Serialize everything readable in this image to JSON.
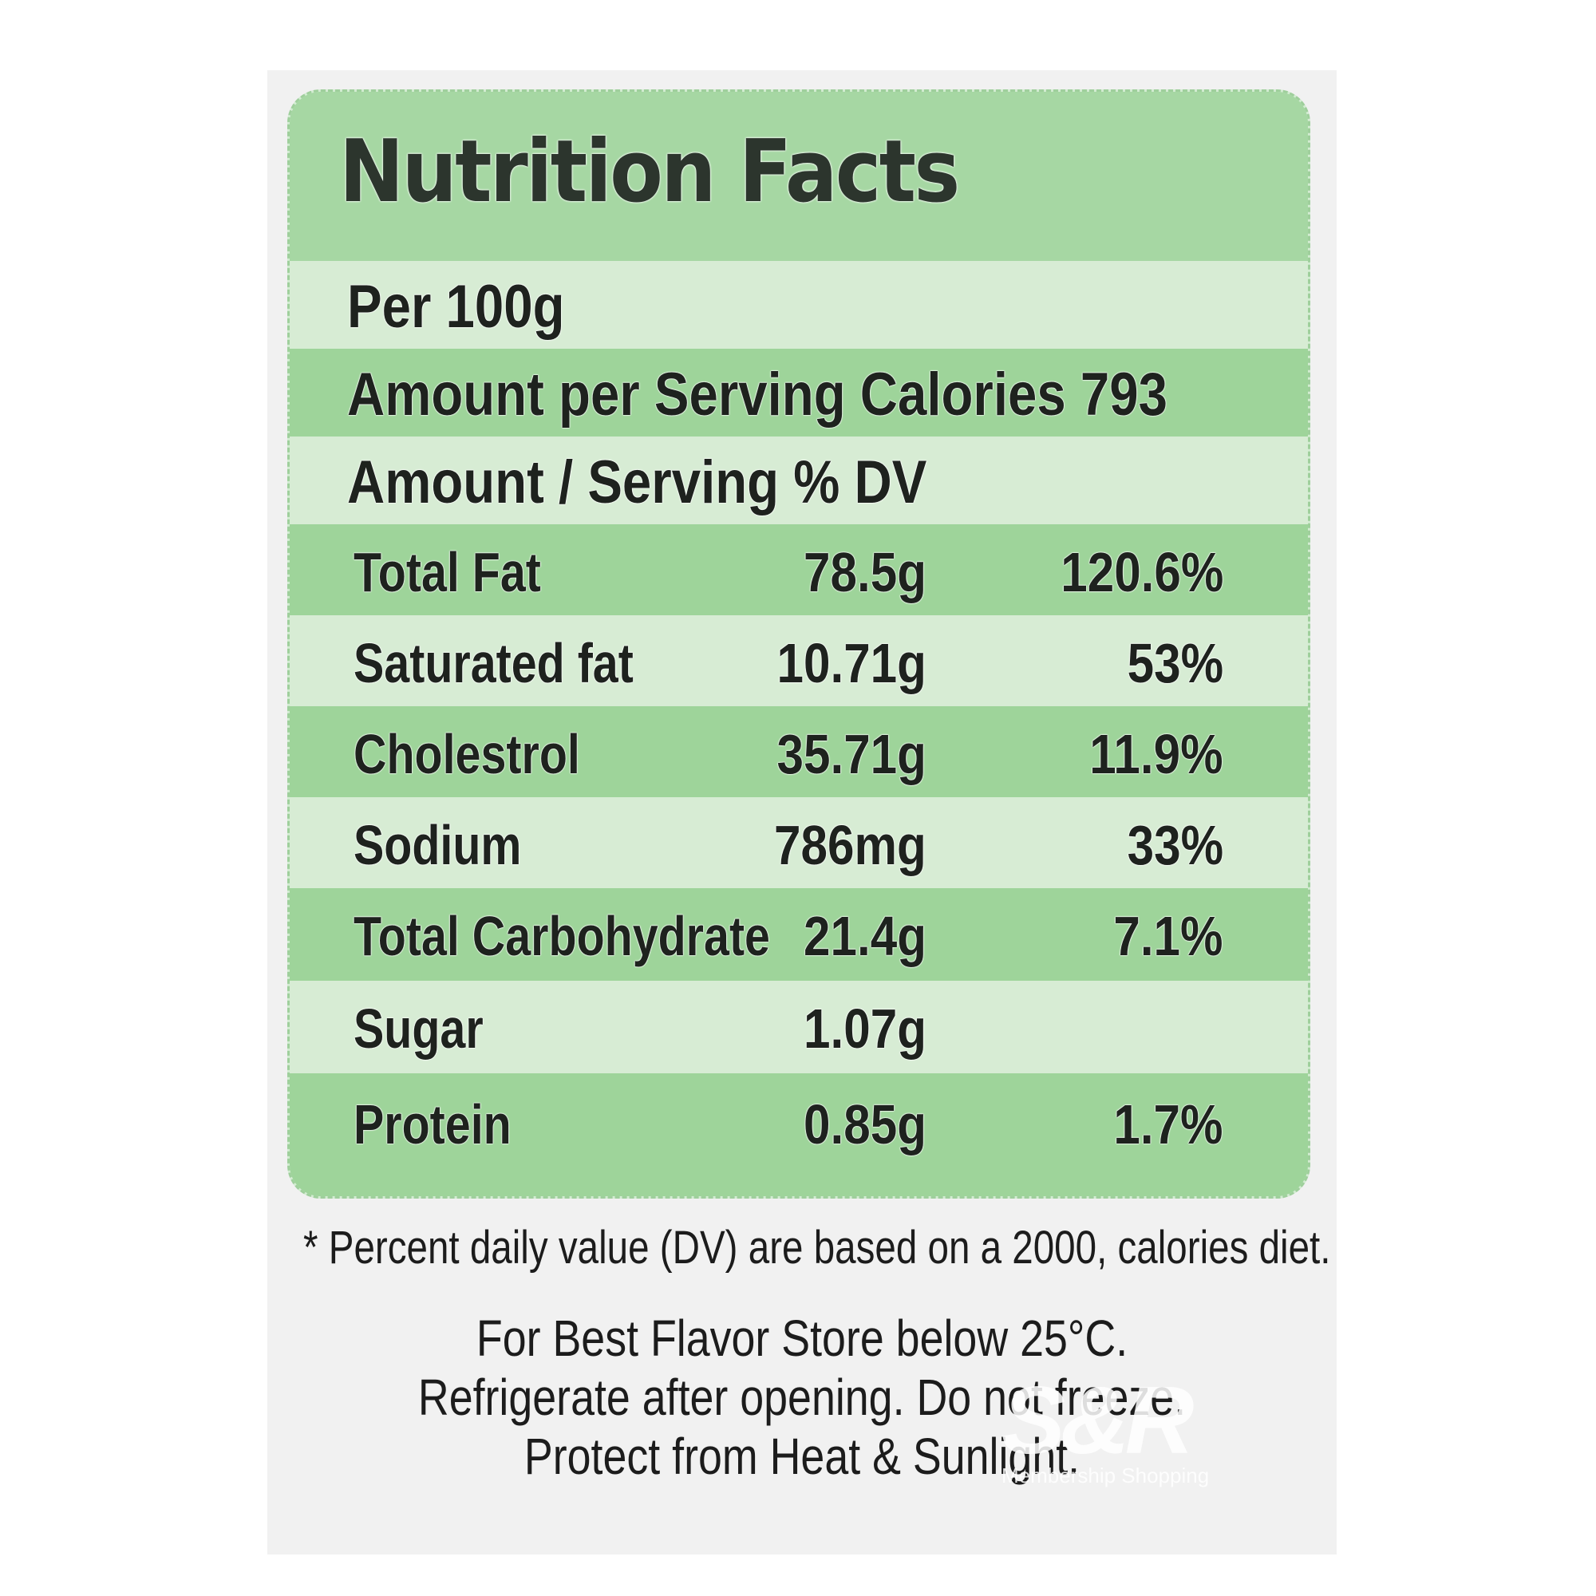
{
  "panel": {
    "title": "Nutrition Facts",
    "per": "Per 100g",
    "calories_line": "Amount per Serving Calories 793",
    "column_header": "Amount  / Serving % DV",
    "rows": [
      {
        "name": "Total Fat",
        "amount": "78.5g",
        "dv": "120.6%"
      },
      {
        "name": "Saturated fat",
        "amount": "10.71g",
        "dv": "53%"
      },
      {
        "name": "Cholestrol",
        "amount": "35.71g",
        "dv": "11.9%"
      },
      {
        "name": "Sodium",
        "amount": "786mg",
        "dv": "33%"
      },
      {
        "name": "Total Carbohydrate",
        "amount": "21.4g",
        "dv": "7.1%"
      },
      {
        "name": "Sugar",
        "amount": "1.07g",
        "dv": ""
      },
      {
        "name": "Protein",
        "amount": "0.85g",
        "dv": "1.7%"
      }
    ]
  },
  "footnote": "* Percent daily value (DV) are based on a 2000, calories diet.",
  "storage": {
    "line1": "For Best Flavor Store below 25°C.",
    "line2": "Refrigerate after opening. Do not freeze.",
    "line3": "Protect from Heat & Sunlight."
  },
  "watermark": {
    "logo": "S&R",
    "tagline": "Membership Shopping"
  },
  "colors": {
    "panel_light": "#d7ecd4",
    "panel_dark": "#9ed49a",
    "sheet": "#f1f1f1"
  }
}
